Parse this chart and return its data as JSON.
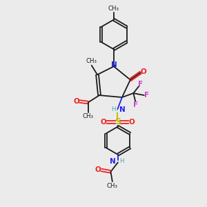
{
  "bg_color": "#ebebeb",
  "bond_color": "#1a1a1a",
  "N_color": "#2222ee",
  "O_color": "#ee2222",
  "F_color": "#cc44cc",
  "S_color": "#bbbb00",
  "H_color": "#44aaaa",
  "fig_w": 3.0,
  "fig_h": 3.0,
  "dpi": 100,
  "xlim": [
    0,
    10
  ],
  "ylim": [
    0,
    10
  ],
  "lw": 1.3,
  "fs": 7.5,
  "fs_sm": 6.2
}
